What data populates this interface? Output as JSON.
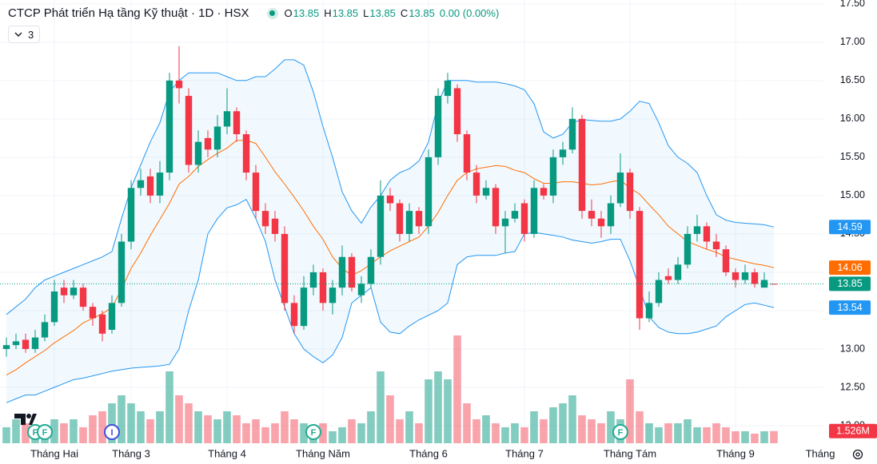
{
  "chart_data": {
    "type": "candlestick",
    "title": "CTCP Phát triển Hạ tầng Kỹ thuật · 1D · HSX",
    "hidden_indicators": 3,
    "legend": {
      "labels": [
        "O",
        "H",
        "L",
        "C"
      ],
      "change": "0.00 (0.00%)"
    },
    "xlim": [
      -0.5,
      85
    ],
    "xticks": [
      {
        "value": 5,
        "label": "Tháng Hai"
      },
      {
        "value": 13,
        "label": "Tháng 3"
      },
      {
        "value": 23,
        "label": "Tháng 4"
      },
      {
        "value": 33,
        "label": "Tháng Năm"
      },
      {
        "value": 44,
        "label": "Tháng 6"
      },
      {
        "value": 54,
        "label": "Tháng 7"
      },
      {
        "value": 65,
        "label": "Tháng Tám"
      },
      {
        "value": 76,
        "label": "Tháng 9"
      },
      {
        "value": 86,
        "label": "Tháng"
      }
    ],
    "ylim": [
      11.74,
      17.55
    ],
    "yticks": [
      {
        "value": 12,
        "label": "12.00"
      },
      {
        "value": 12.5,
        "label": "12.50"
      },
      {
        "value": 13,
        "label": "13.00"
      },
      {
        "value": 13.5,
        "label": "13.50"
      },
      {
        "value": 14,
        "label": "14.00"
      },
      {
        "value": 14.5,
        "label": "14.50"
      },
      {
        "value": 15,
        "label": "15.00"
      },
      {
        "value": 15.5,
        "label": "15.50"
      },
      {
        "value": 16,
        "label": "16.00"
      },
      {
        "value": 16.5,
        "label": "16.50"
      },
      {
        "value": 17,
        "label": "17.00"
      },
      {
        "value": 17.5,
        "label": "17.50"
      }
    ],
    "grid": true,
    "colors": {
      "up": "#089981",
      "down": "#f23645"
    },
    "open": [
      13.0,
      13.05,
      13.12,
      13.0,
      13.15,
      13.35,
      13.8,
      13.7,
      13.8,
      13.55,
      13.45,
      13.25,
      13.6,
      14.4,
      15.1,
      15.25,
      15.0,
      15.3,
      16.5,
      16.3,
      15.4,
      15.75,
      15.6,
      15.9,
      16.1,
      15.8,
      15.3,
      14.8,
      14.7,
      14.5,
      13.6,
      13.3,
      13.8,
      14.0,
      13.6,
      13.8,
      14.2,
      13.7,
      13.85,
      14.2,
      15.0,
      14.9,
      14.5,
      14.8,
      14.6,
      15.5,
      16.3,
      16.4,
      15.8,
      15.3,
      15.0,
      15.1,
      14.6,
      14.7,
      14.9,
      14.5,
      15.1,
      15.0,
      15.5,
      15.6,
      16.0,
      14.8,
      14.7,
      14.6,
      14.9,
      15.3,
      14.8,
      13.4,
      13.6,
      13.95,
      13.9,
      14.1,
      14.5,
      14.6,
      14.4,
      14.3,
      14.0,
      13.9,
      14.0,
      13.8,
      13.85
    ],
    "high": [
      13.15,
      13.2,
      13.2,
      13.25,
      13.45,
      13.9,
      13.9,
      13.9,
      13.85,
      13.6,
      13.5,
      13.7,
      14.5,
      15.2,
      15.35,
      15.35,
      15.45,
      16.6,
      16.95,
      16.4,
      15.85,
      15.85,
      16.05,
      16.4,
      16.15,
      15.85,
      15.4,
      14.9,
      14.8,
      14.6,
      13.7,
      13.95,
      14.1,
      14.05,
      13.9,
      14.35,
      14.25,
      13.95,
      14.3,
      15.2,
      15.1,
      14.95,
      14.9,
      14.85,
      15.6,
      16.4,
      16.6,
      16.45,
      15.85,
      15.4,
      15.2,
      15.15,
      14.8,
      14.9,
      14.95,
      15.2,
      15.15,
      15.6,
      15.7,
      16.15,
      16.05,
      14.95,
      14.8,
      15.0,
      15.55,
      15.35,
      14.85,
      13.75,
      14.0,
      14.05,
      14.2,
      14.6,
      14.75,
      14.65,
      14.5,
      14.35,
      14.05,
      14.1,
      14.05,
      14.0,
      13.85
    ],
    "low": [
      12.9,
      13.0,
      12.95,
      12.95,
      13.1,
      13.3,
      13.6,
      13.65,
      13.5,
      13.3,
      13.1,
      13.2,
      13.55,
      14.3,
      15.0,
      14.9,
      14.9,
      15.2,
      16.2,
      15.3,
      15.3,
      15.5,
      15.5,
      15.8,
      15.7,
      15.2,
      14.7,
      14.5,
      14.4,
      13.5,
      13.2,
      13.25,
      13.7,
      13.5,
      13.45,
      13.7,
      13.75,
      13.6,
      13.8,
      14.1,
      14.8,
      14.4,
      14.4,
      14.5,
      14.5,
      15.4,
      16.2,
      15.7,
      15.2,
      14.9,
      14.95,
      14.5,
      14.25,
      14.65,
      14.4,
      14.45,
      14.95,
      14.9,
      15.4,
      15.55,
      14.7,
      14.6,
      14.45,
      14.5,
      14.85,
      14.7,
      13.25,
      13.35,
      13.55,
      13.85,
      13.85,
      14.05,
      14.4,
      14.3,
      14.2,
      13.95,
      13.8,
      13.85,
      13.8,
      13.8,
      13.85
    ],
    "close": [
      13.05,
      13.1,
      13.0,
      13.15,
      13.35,
      13.75,
      13.7,
      13.8,
      13.55,
      13.4,
      13.2,
      13.6,
      14.4,
      15.1,
      15.2,
      15.0,
      15.3,
      16.5,
      16.4,
      15.4,
      15.7,
      15.6,
      15.9,
      16.1,
      15.8,
      15.3,
      14.8,
      14.6,
      14.5,
      13.6,
      13.3,
      13.8,
      14.0,
      13.6,
      13.8,
      14.2,
      13.8,
      13.85,
      14.2,
      15.0,
      14.9,
      14.5,
      14.8,
      14.6,
      15.5,
      16.3,
      16.5,
      15.8,
      15.3,
      15.0,
      15.1,
      14.6,
      14.7,
      14.8,
      14.5,
      15.1,
      15.0,
      15.5,
      15.6,
      16.0,
      14.8,
      14.7,
      14.6,
      14.9,
      15.3,
      14.8,
      13.4,
      13.6,
      13.9,
      13.9,
      14.1,
      14.5,
      14.6,
      14.4,
      14.3,
      14.0,
      13.9,
      14.0,
      13.85,
      13.9,
      13.85
    ],
    "bollinger": {
      "upper_color": "#2196f3",
      "middle_color": "#ff6d00",
      "upper": [
        13.45,
        13.55,
        13.65,
        13.8,
        13.9,
        13.95,
        14.0,
        14.05,
        14.1,
        14.15,
        14.2,
        14.27,
        14.7,
        15.1,
        15.4,
        15.7,
        15.95,
        16.35,
        16.5,
        16.6,
        16.6,
        16.6,
        16.6,
        16.55,
        16.5,
        16.5,
        16.55,
        16.55,
        16.65,
        16.77,
        16.77,
        16.7,
        16.35,
        15.9,
        15.5,
        15.05,
        14.8,
        14.64,
        14.85,
        15.0,
        15.2,
        15.3,
        15.35,
        15.45,
        15.7,
        16.2,
        16.5,
        16.5,
        16.5,
        16.48,
        16.48,
        16.48,
        16.46,
        16.43,
        16.38,
        16.2,
        15.83,
        15.75,
        15.8,
        15.95,
        15.99,
        15.98,
        15.97,
        15.97,
        16.0,
        16.1,
        16.23,
        16.2,
        15.95,
        15.65,
        15.5,
        15.42,
        15.3,
        15.0,
        14.75,
        14.68,
        14.65,
        14.64,
        14.63,
        14.62,
        14.59
      ],
      "middle": [
        12.66,
        12.73,
        12.82,
        12.9,
        12.98,
        13.08,
        13.16,
        13.24,
        13.34,
        13.4,
        13.46,
        13.54,
        13.78,
        14.05,
        14.25,
        14.48,
        14.69,
        14.9,
        15.15,
        15.25,
        15.38,
        15.47,
        15.55,
        15.62,
        15.72,
        15.72,
        15.68,
        15.5,
        15.31,
        15.15,
        14.98,
        14.8,
        14.6,
        14.43,
        14.2,
        14.05,
        13.96,
        14.02,
        14.11,
        14.2,
        14.28,
        14.34,
        14.4,
        14.46,
        14.6,
        14.78,
        15.0,
        15.2,
        15.3,
        15.35,
        15.37,
        15.39,
        15.38,
        15.33,
        15.3,
        15.22,
        15.16,
        15.16,
        15.18,
        15.18,
        15.16,
        15.14,
        15.15,
        15.18,
        15.2,
        15.1,
        15.02,
        14.88,
        14.75,
        14.6,
        14.5,
        14.4,
        14.35,
        14.3,
        14.26,
        14.2,
        14.17,
        14.14,
        14.11,
        14.09,
        14.06
      ],
      "lower": [
        12.3,
        12.35,
        12.4,
        12.4,
        12.45,
        12.5,
        12.55,
        12.6,
        12.62,
        12.65,
        12.68,
        12.71,
        12.73,
        12.75,
        12.76,
        12.77,
        12.78,
        12.8,
        13.0,
        13.5,
        13.9,
        14.5,
        14.7,
        14.84,
        14.88,
        14.95,
        14.7,
        14.4,
        13.9,
        13.55,
        13.2,
        13.0,
        12.9,
        12.82,
        12.92,
        13.15,
        13.6,
        13.7,
        13.8,
        13.35,
        13.22,
        13.2,
        13.3,
        13.38,
        13.44,
        13.5,
        13.6,
        14.1,
        14.2,
        14.22,
        14.22,
        14.22,
        14.25,
        14.27,
        14.5,
        14.52,
        14.5,
        14.48,
        14.46,
        14.42,
        14.4,
        14.38,
        14.4,
        14.43,
        14.43,
        14.15,
        13.8,
        13.42,
        13.28,
        13.22,
        13.2,
        13.2,
        13.22,
        13.26,
        13.3,
        13.42,
        13.5,
        13.58,
        13.6,
        13.57,
        13.54
      ]
    },
    "volume": {
      "ylim": [
        0,
        14
      ],
      "values": [
        2,
        3,
        2.5,
        1.5,
        2,
        3,
        2.5,
        3,
        2,
        3.5,
        4,
        5,
        6,
        5,
        4,
        3,
        4,
        9,
        6,
        5,
        4,
        3.5,
        3,
        4,
        3.5,
        2.5,
        3,
        2,
        2.5,
        4,
        3,
        2.5,
        2,
        2.5,
        1.5,
        2,
        3,
        2.5,
        4,
        9,
        6,
        3,
        4,
        2.5,
        8,
        9,
        8,
        13.5,
        5,
        3,
        3.5,
        2.5,
        2,
        2.5,
        2,
        4,
        3,
        4.5,
        5,
        6,
        3.5,
        3,
        2.5,
        4,
        3,
        8,
        4,
        2.5,
        2,
        2.5,
        2.5,
        3,
        2,
        2,
        2.5,
        2,
        1.5,
        1.5,
        1.2,
        1.5,
        1.526
      ],
      "last_label": "1.526M"
    },
    "events": [
      {
        "label": "F",
        "x": 3,
        "color": "#22ab94"
      },
      {
        "label": "F",
        "x": 4,
        "color": "#22ab94"
      },
      {
        "label": "I",
        "x": 11,
        "color": "#3f51d9"
      },
      {
        "label": "F",
        "x": 32,
        "color": "#22ab94"
      },
      {
        "label": "F",
        "x": 64,
        "color": "#22ab94"
      }
    ]
  }
}
